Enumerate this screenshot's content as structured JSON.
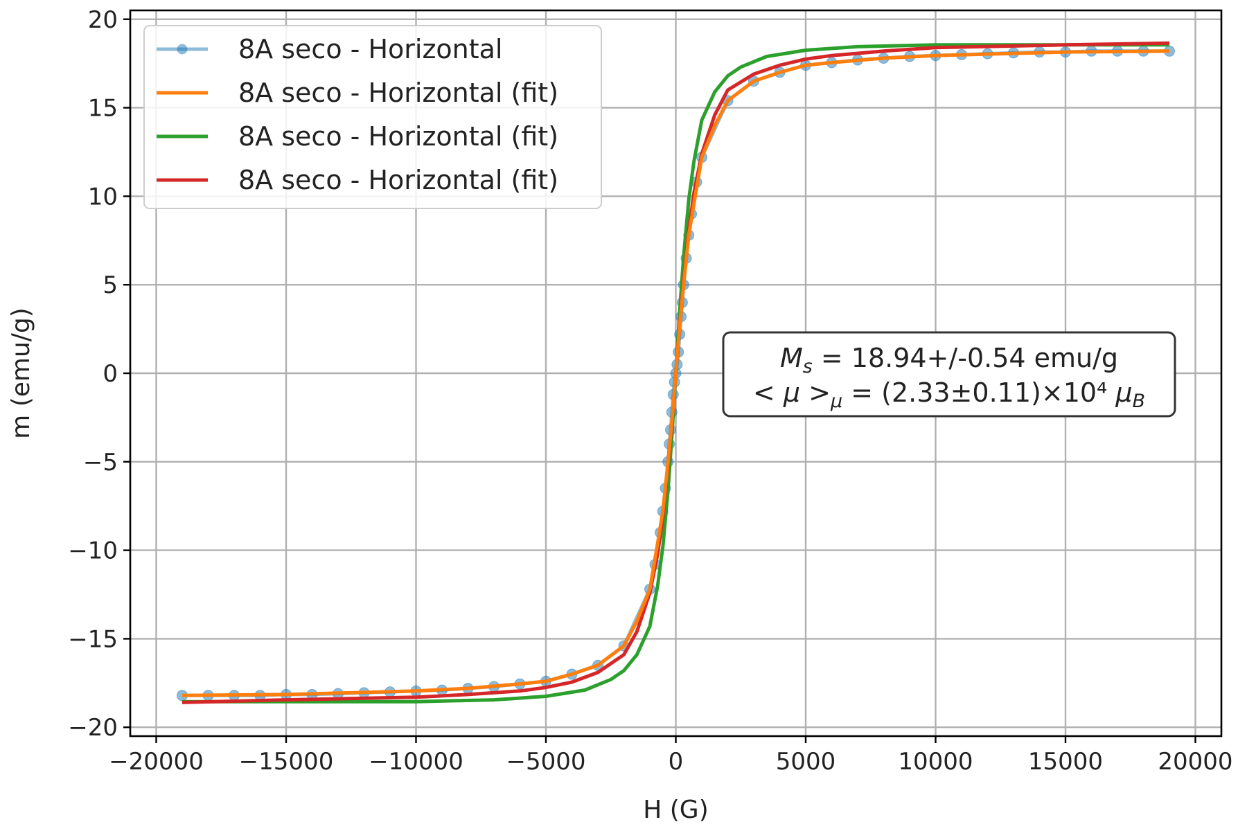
{
  "chart_data": {
    "type": "line",
    "xlabel": "H (G)",
    "ylabel": "m (emu/g)",
    "xlim": [
      -21000,
      21000
    ],
    "ylim": [
      -20.5,
      20.5
    ],
    "xticks": [
      -20000,
      -15000,
      -10000,
      -5000,
      0,
      5000,
      10000,
      15000,
      20000
    ],
    "yticks": [
      -20,
      -15,
      -10,
      -5,
      0,
      5,
      10,
      15,
      20
    ],
    "xtick_labels": [
      "−20000",
      "−15000",
      "−10000",
      "−5000",
      "0",
      "5000",
      "10000",
      "15000",
      "20000"
    ],
    "ytick_labels": [
      "−20",
      "−15",
      "−10",
      "−5",
      "0",
      "5",
      "10",
      "15",
      "20"
    ],
    "grid": true,
    "legend_position": "top-left",
    "series": [
      {
        "name": "8A seco - Horizontal",
        "color": "#1f77b4",
        "style": "line+markers",
        "x": [
          -19000,
          -18000,
          -17000,
          -16000,
          -15000,
          -14000,
          -13000,
          -12000,
          -11000,
          -10000,
          -9000,
          -8000,
          -7000,
          -6000,
          -5000,
          -4000,
          -3000,
          -2000,
          -1000,
          -800,
          -600,
          -500,
          -400,
          -300,
          -250,
          -200,
          -150,
          -100,
          -50,
          0,
          50,
          100,
          150,
          200,
          250,
          300,
          400,
          500,
          600,
          800,
          1000,
          2000,
          3000,
          4000,
          5000,
          6000,
          7000,
          8000,
          9000,
          10000,
          11000,
          12000,
          13000,
          14000,
          15000,
          16000,
          17000,
          18000,
          19000
        ],
        "y": [
          -18.2,
          -18.2,
          -18.2,
          -18.2,
          -18.15,
          -18.15,
          -18.1,
          -18.05,
          -18.0,
          -17.95,
          -17.9,
          -17.8,
          -17.7,
          -17.55,
          -17.4,
          -17.0,
          -16.5,
          -15.4,
          -12.2,
          -10.8,
          -9.0,
          -7.8,
          -6.5,
          -5.0,
          -4.0,
          -3.2,
          -2.2,
          -1.2,
          -0.5,
          0.0,
          0.5,
          1.2,
          2.2,
          3.2,
          4.0,
          5.0,
          6.5,
          7.8,
          9.0,
          10.8,
          12.2,
          15.4,
          16.5,
          17.0,
          17.4,
          17.55,
          17.7,
          17.8,
          17.9,
          17.95,
          18.0,
          18.05,
          18.1,
          18.15,
          18.15,
          18.2,
          18.2,
          18.2,
          18.2
        ]
      },
      {
        "name": "8A seco - Horizontal (fit)",
        "color": "#ff7f0e",
        "style": "line",
        "x": [
          -19000,
          -15000,
          -10000,
          -8000,
          -6000,
          -5000,
          -4000,
          -3000,
          -2000,
          -1500,
          -1000,
          -700,
          -500,
          -300,
          -150,
          0,
          150,
          300,
          500,
          700,
          1000,
          1500,
          2000,
          3000,
          4000,
          5000,
          6000,
          8000,
          10000,
          15000,
          19000
        ],
        "y": [
          -18.2,
          -18.15,
          -17.95,
          -17.8,
          -17.55,
          -17.4,
          -17.0,
          -16.5,
          -15.4,
          -14.0,
          -12.2,
          -9.6,
          -7.8,
          -5.0,
          -2.7,
          0.0,
          2.7,
          5.0,
          7.8,
          9.6,
          12.2,
          14.0,
          15.4,
          16.5,
          17.0,
          17.4,
          17.55,
          17.8,
          17.95,
          18.15,
          18.2
        ]
      },
      {
        "name": "8A seco - Horizontal (fit)",
        "color": "#2ca02c",
        "style": "line",
        "x": [
          -19000,
          -15000,
          -10000,
          -7000,
          -5000,
          -3500,
          -2500,
          -2000,
          -1500,
          -1000,
          -700,
          -500,
          -300,
          -150,
          0,
          150,
          300,
          500,
          700,
          1000,
          1500,
          2000,
          2500,
          3500,
          5000,
          7000,
          10000,
          15000,
          19000
        ],
        "y": [
          -18.55,
          -18.55,
          -18.55,
          -18.45,
          -18.25,
          -17.9,
          -17.3,
          -16.8,
          -15.9,
          -14.3,
          -12.0,
          -9.8,
          -6.6,
          -3.5,
          0.0,
          3.5,
          6.6,
          9.8,
          12.0,
          14.3,
          15.9,
          16.8,
          17.3,
          17.9,
          18.25,
          18.45,
          18.55,
          18.55,
          18.55
        ]
      },
      {
        "name": "8A seco - Horizontal (fit)",
        "color": "#d62728",
        "style": "line",
        "x": [
          -19000,
          -15000,
          -10000,
          -8000,
          -6000,
          -5000,
          -4000,
          -3000,
          -2000,
          -1500,
          -1000,
          -700,
          -500,
          -300,
          -150,
          0,
          150,
          300,
          500,
          700,
          1000,
          1500,
          2000,
          3000,
          4000,
          5000,
          6000,
          8000,
          10000,
          15000,
          19000
        ],
        "y": [
          -18.6,
          -18.45,
          -18.3,
          -18.15,
          -17.95,
          -17.75,
          -17.45,
          -16.9,
          -15.9,
          -14.6,
          -12.4,
          -10.2,
          -8.1,
          -5.2,
          -2.8,
          0.0,
          2.8,
          5.2,
          8.1,
          10.2,
          12.4,
          14.6,
          16.0,
          16.9,
          17.4,
          17.75,
          17.95,
          18.2,
          18.4,
          18.55,
          18.65
        ]
      }
    ],
    "annotation": {
      "line1": "Mₛ = 18.94+/-0.54 emu/g",
      "line2": "< μ >ᵤ = (2.33±0.11)×10⁴ μ_B"
    }
  },
  "legend": {
    "items": [
      {
        "label": "8A seco - Horizontal",
        "color": "#1f77b4"
      },
      {
        "label": "8A seco - Horizontal (fit)",
        "color": "#ff7f0e"
      },
      {
        "label": "8A seco - Horizontal (fit)",
        "color": "#2ca02c"
      },
      {
        "label": "8A seco - Horizontal (fit)",
        "color": "#d62728"
      }
    ]
  }
}
